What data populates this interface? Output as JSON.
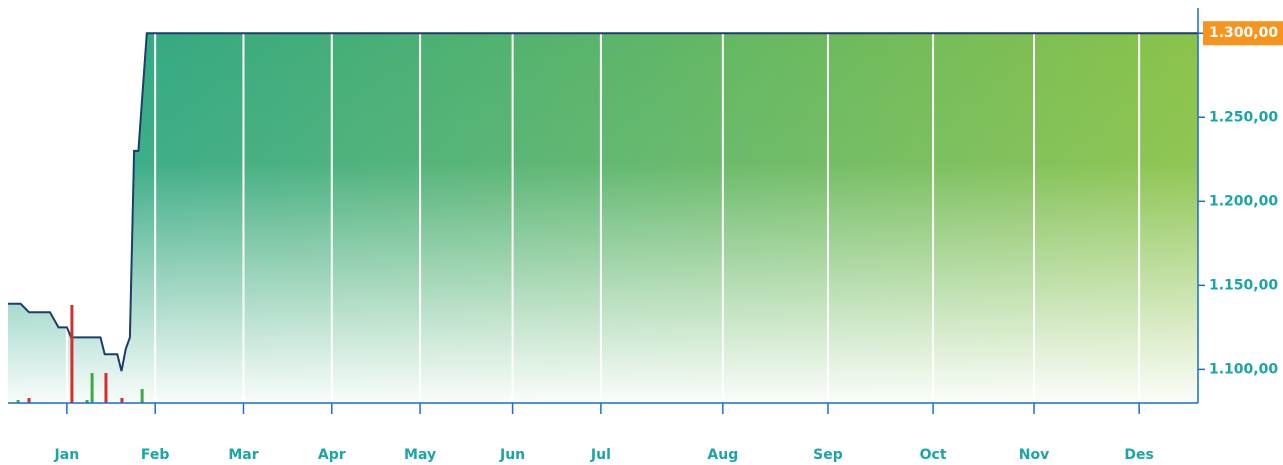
{
  "chart_data": {
    "type": "area",
    "line_color": "#1b3d6e",
    "fill_colors": [
      "#2aa68a",
      "#8bc34a"
    ],
    "axis_color": "#1a6fc4",
    "label_color": "#1aa6a6",
    "last_value_color": "#f7941d",
    "grid": true,
    "xlim": [
      0,
      283
    ],
    "xticks": [
      {
        "value": 14,
        "label": "Jan"
      },
      {
        "value": 35,
        "label": "Feb"
      },
      {
        "value": 56,
        "label": "Mar"
      },
      {
        "value": 77,
        "label": "Apr"
      },
      {
        "value": 98,
        "label": "May"
      },
      {
        "value": 120,
        "label": "Jun"
      },
      {
        "value": 141,
        "label": "Jul"
      },
      {
        "value": 170,
        "label": "Aug"
      },
      {
        "value": 195,
        "label": "Sep"
      },
      {
        "value": 220,
        "label": "Oct"
      },
      {
        "value": 244,
        "label": "Nov"
      },
      {
        "value": 269,
        "label": "Des"
      }
    ],
    "ylim": [
      1080,
      1315
    ],
    "yticks": [
      {
        "value": 1100,
        "label": "1.100,00"
      },
      {
        "value": 1150,
        "label": "1.150,00"
      },
      {
        "value": 1200,
        "label": "1.200,00"
      },
      {
        "value": 1250,
        "label": "1.250,00"
      },
      {
        "value": 1300,
        "label": "1.300,00"
      }
    ],
    "x": [
      0,
      3,
      5,
      10,
      12,
      14,
      15,
      22,
      23,
      26,
      27,
      28,
      29,
      30,
      31,
      33,
      283
    ],
    "values": [
      1139,
      1139,
      1134,
      1134,
      1125,
      1125,
      1119,
      1119,
      1109,
      1109,
      1099,
      1112,
      1119,
      1230,
      1230,
      1300,
      1300
    ],
    "volume": {
      "colors": {
        "up": "#3daa4a",
        "down": "#d32f2f"
      },
      "lim": [
        0,
        100
      ],
      "x": [
        2.4,
        5,
        15.2,
        18.8,
        20,
        23.3,
        27.1,
        31.9
      ],
      "values": [
        3,
        5,
        98,
        3,
        30,
        30,
        5,
        14
      ],
      "direction": [
        "up",
        "down",
        "down",
        "up",
        "up",
        "down",
        "down",
        "up"
      ]
    }
  }
}
